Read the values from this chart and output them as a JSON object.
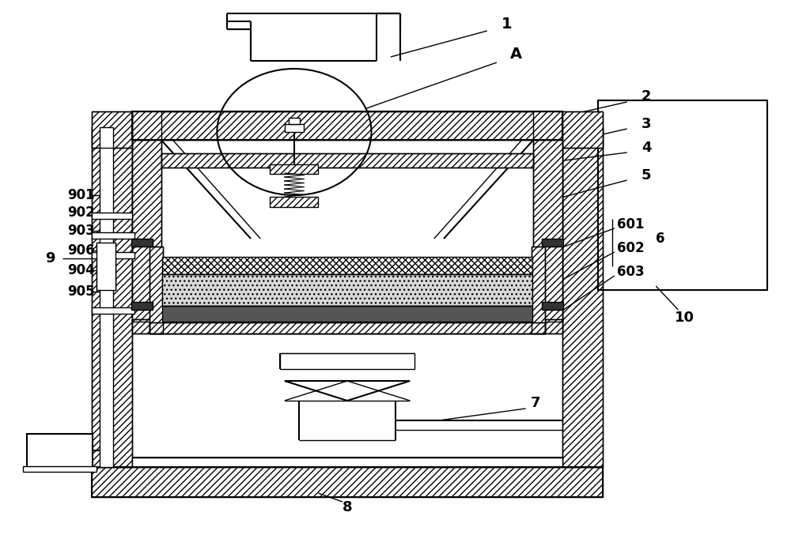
{
  "bg_color": "#ffffff",
  "line_color": "#000000",
  "figsize": [
    10.0,
    6.77
  ],
  "dpi": 100
}
